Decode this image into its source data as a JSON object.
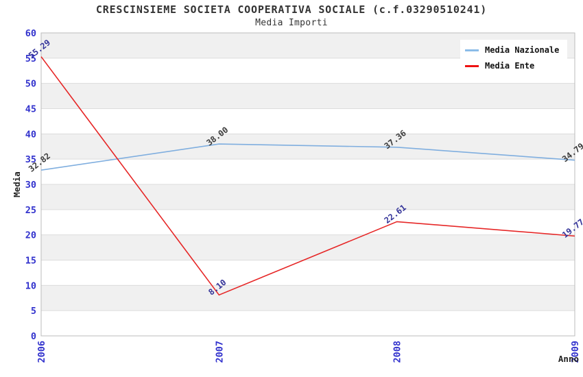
{
  "header": {
    "title": "CRESCINSIEME SOCIETA COOPERATIVA SOCIALE (c.f.03290510241)",
    "subtitle": "Media Importi"
  },
  "legend": {
    "items": [
      {
        "label": "Media Nazionale",
        "color": "#8BBCE8"
      },
      {
        "label": "Media Ente",
        "color": "#EE1111"
      }
    ]
  },
  "chart_data": {
    "type": "line",
    "title": "CRESCINSIEME SOCIETA COOPERATIVA SOCIALE (c.f.03290510241)",
    "subtitle": "Media Importi",
    "xlabel": "Anno",
    "ylabel": "Media",
    "categories": [
      "2006",
      "2007",
      "2008",
      "2009"
    ],
    "ylim": [
      0,
      60
    ],
    "ytick_step": 5,
    "grid": true,
    "legend_position": "top-right",
    "series": [
      {
        "name": "Media Nazionale",
        "color": "#7FAEDF",
        "label_color": "#3C3C3C",
        "values": [
          32.82,
          38.0,
          37.36,
          34.79
        ],
        "point_labels": [
          "32.82",
          "38.00",
          "37.36",
          "34.79"
        ]
      },
      {
        "name": "Media Ente",
        "color": "#E62626",
        "label_color": "#333399",
        "values": [
          55.29,
          8.1,
          22.61,
          19.77
        ],
        "point_labels": [
          "55.29",
          "8.10",
          "22.61",
          "19.77"
        ]
      }
    ],
    "styles": {
      "tick_color": "#3232CD",
      "band_colors": [
        "#FFFFFF",
        "#F0F0F0"
      ],
      "grid_color": "#DCDCDC",
      "border_color": "#BBBBBB",
      "axis_title_color": "#222222"
    }
  }
}
